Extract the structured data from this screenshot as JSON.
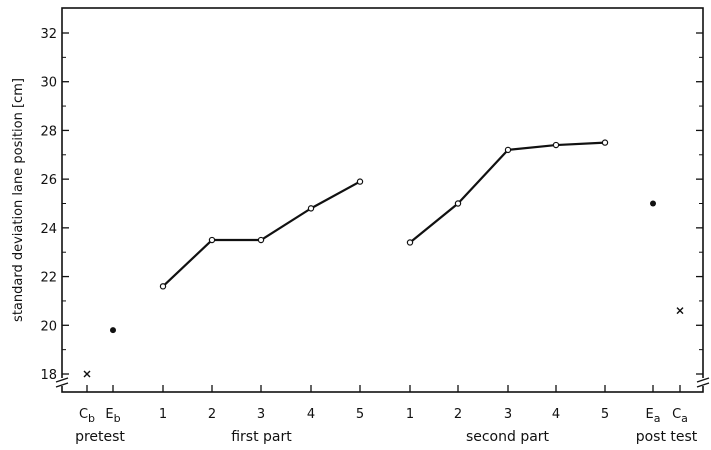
{
  "chart_data": {
    "type": "line",
    "title": "",
    "ylabel": "standard deviation lane position [cm]",
    "ylim": [
      17.5,
      33
    ],
    "yticks": [
      18,
      20,
      22,
      24,
      26,
      28,
      30,
      32
    ],
    "grid": false,
    "x_ticks": [
      {
        "id": "cb",
        "main": "C",
        "sub": "b"
      },
      {
        "id": "eb",
        "main": "E",
        "sub": "b"
      },
      {
        "id": "p1-1",
        "main": "1"
      },
      {
        "id": "p1-2",
        "main": "2"
      },
      {
        "id": "p1-3",
        "main": "3"
      },
      {
        "id": "p1-4",
        "main": "4"
      },
      {
        "id": "p1-5",
        "main": "5"
      },
      {
        "id": "p2-1",
        "main": "1"
      },
      {
        "id": "p2-2",
        "main": "2"
      },
      {
        "id": "p2-3",
        "main": "3"
      },
      {
        "id": "p2-4",
        "main": "4"
      },
      {
        "id": "p2-5",
        "main": "5"
      },
      {
        "id": "ea",
        "main": "E",
        "sub": "a"
      },
      {
        "id": "ca",
        "main": "C",
        "sub": "a"
      }
    ],
    "groups": [
      {
        "label": "pretest",
        "ticks": [
          "cb",
          "eb"
        ]
      },
      {
        "label": "first part",
        "ticks": [
          "p1-1",
          "p1-2",
          "p1-3",
          "p1-4",
          "p1-5"
        ]
      },
      {
        "label": "second part",
        "ticks": [
          "p2-1",
          "p2-2",
          "p2-3",
          "p2-4",
          "p2-5"
        ]
      },
      {
        "label": "post test",
        "ticks": [
          "ea",
          "ca"
        ]
      }
    ],
    "series": [
      {
        "marker": "open-circle",
        "line": true,
        "points": [
          {
            "x": "p1-1",
            "y": 21.6
          },
          {
            "x": "p1-2",
            "y": 23.5
          },
          {
            "x": "p1-3",
            "y": 23.5
          },
          {
            "x": "p1-4",
            "y": 24.8
          },
          {
            "x": "p1-5",
            "y": 25.9
          }
        ]
      },
      {
        "marker": "open-circle",
        "line": true,
        "points": [
          {
            "x": "p2-1",
            "y": 23.4
          },
          {
            "x": "p2-2",
            "y": 25.0
          },
          {
            "x": "p2-3",
            "y": 27.2
          },
          {
            "x": "p2-4",
            "y": 27.4
          },
          {
            "x": "p2-5",
            "y": 27.5
          }
        ]
      },
      {
        "marker": "cross",
        "line": false,
        "points": [
          {
            "x": "cb",
            "y": 18.0
          },
          {
            "x": "ca",
            "y": 20.6
          }
        ]
      },
      {
        "marker": "filled-circle",
        "line": false,
        "points": [
          {
            "x": "eb",
            "y": 19.8
          },
          {
            "x": "ea",
            "y": 25.0
          }
        ]
      }
    ]
  }
}
